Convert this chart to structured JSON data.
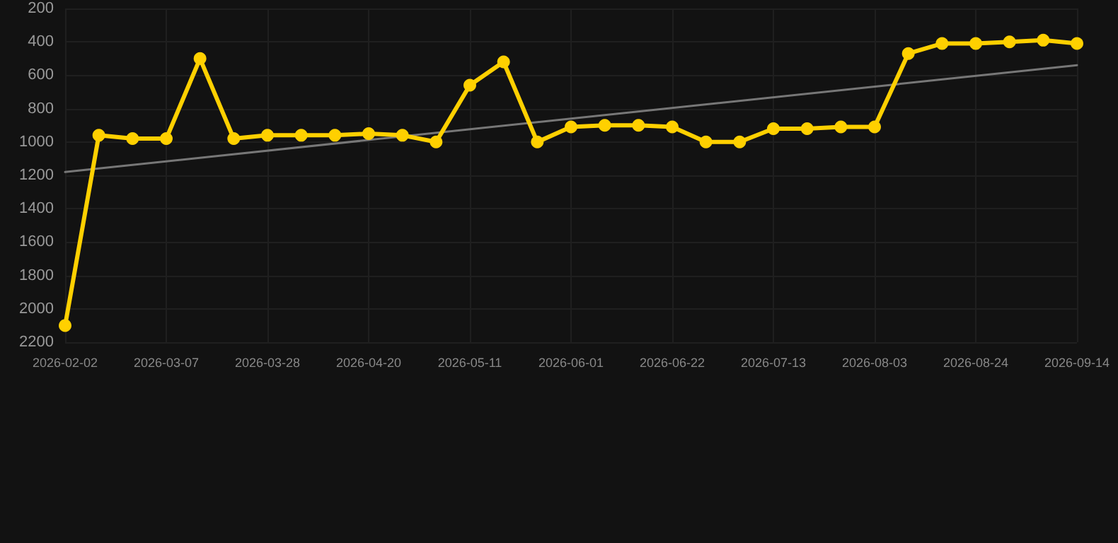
{
  "chart_data": {
    "type": "line",
    "categories": [
      "2026-02-02",
      null,
      null,
      "2026-03-07",
      null,
      null,
      "2026-03-28",
      null,
      null,
      "2026-04-20",
      null,
      null,
      "2026-05-11",
      null,
      null,
      "2026-06-01",
      null,
      null,
      "2026-06-22",
      null,
      null,
      "2026-07-13",
      null,
      null,
      "2026-08-03",
      null,
      null,
      "2026-08-24",
      null,
      null,
      "2026-09-14"
    ],
    "series": [
      {
        "color": "#ffd000",
        "values": [
          2100,
          960,
          980,
          980,
          500,
          980,
          960,
          960,
          960,
          950,
          960,
          1000,
          660,
          520,
          1000,
          910,
          900,
          900,
          910,
          1000,
          1000,
          920,
          920,
          910,
          910,
          470,
          410,
          410,
          400,
          390,
          410
        ]
      },
      {
        "type": "line",
        "color": "#777777",
        "marker": "none",
        "values": [
          1180,
          null,
          null,
          null,
          null,
          null,
          null,
          null,
          null,
          null,
          null,
          null,
          null,
          null,
          null,
          null,
          null,
          null,
          null,
          null,
          null,
          null,
          null,
          null,
          null,
          null,
          null,
          null,
          null,
          null,
          540
        ]
      }
    ],
    "ylim": [
      2200,
      200
    ],
    "yticks": [
      200,
      400,
      600,
      800,
      1000,
      1200,
      1400,
      1600,
      1800,
      2000,
      2200
    ],
    "grid": true,
    "marker": "circle",
    "line_style": "solid"
  }
}
